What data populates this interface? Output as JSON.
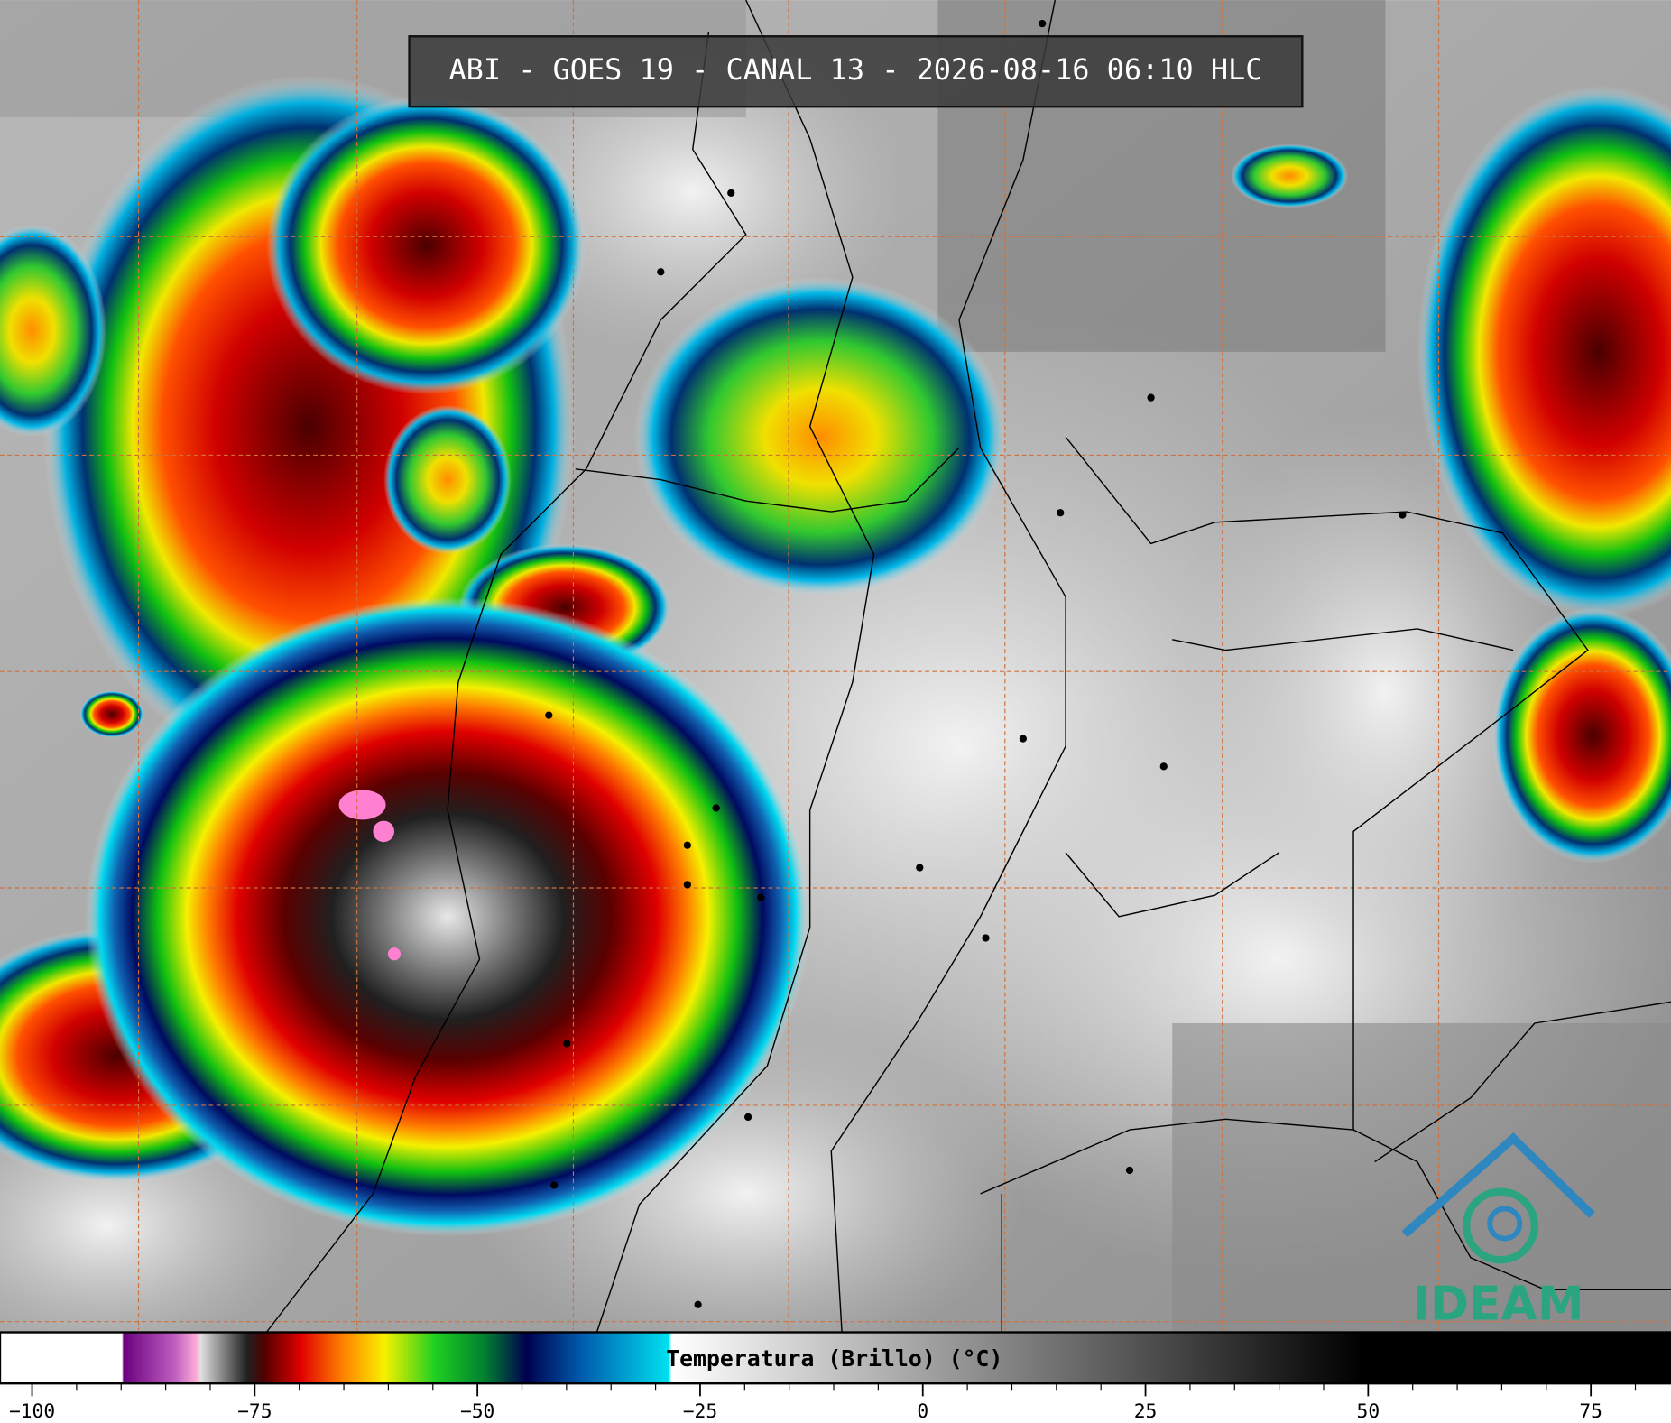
{
  "title": "ABI - GOES 19 - CANAL 13 - 2026-08-16 06:10 HLC",
  "colorbar": {
    "label": "Temperatura (Brillo) (°C)",
    "lim": [
      -103.6,
      84
    ],
    "ticks": [
      {
        "value": -100,
        "label": "−100"
      },
      {
        "value": -75,
        "label": "−75"
      },
      {
        "value": -50,
        "label": "−50"
      },
      {
        "value": -25,
        "label": "−25"
      },
      0,
      25,
      50,
      75
    ]
  },
  "logo": "IDEAM"
}
